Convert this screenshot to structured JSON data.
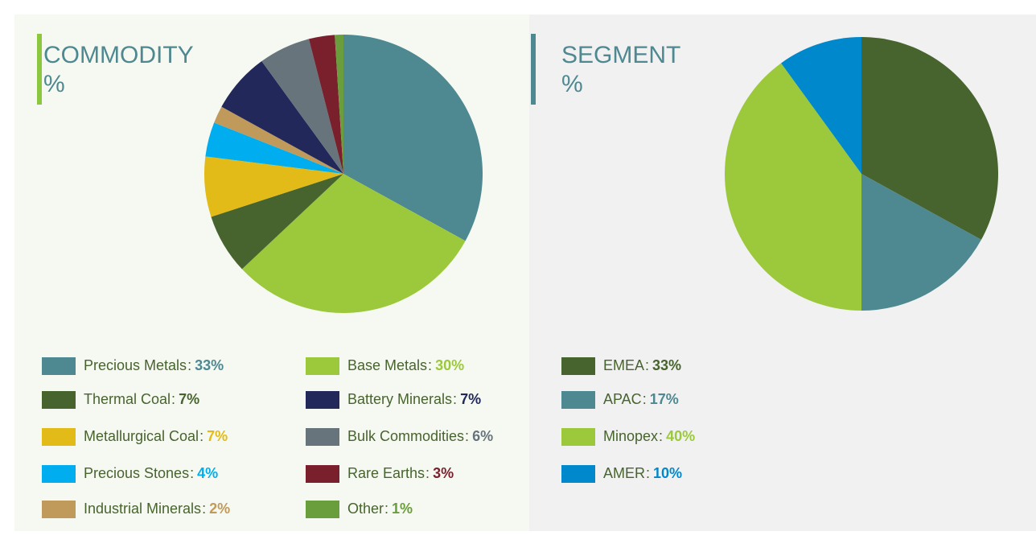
{
  "chart_data": [
    {
      "type": "pie",
      "title": "COMMODITY",
      "subtitle": "%",
      "separator": ":",
      "categories": [
        "Precious Metals",
        "Base Metals",
        "Thermal Coal",
        "Metallurgical Coal",
        "Precious Stones",
        "Industrial Minerals",
        "Battery Minerals",
        "Bulk Commodities",
        "Rare Earths",
        "Other"
      ],
      "values": [
        33,
        30,
        7,
        7,
        4,
        2,
        7,
        6,
        3,
        1
      ],
      "value_labels": [
        "33%",
        "30%",
        "7%",
        "7%",
        "4%",
        "2%",
        "7%",
        "6%",
        "3%",
        "1%"
      ],
      "colors": [
        "#4e8890",
        "#9bc93b",
        "#47632e",
        "#e2bb18",
        "#00aeef",
        "#c09a5b",
        "#22285a",
        "#67747b",
        "#7a1f2c",
        "#6a9e3c"
      ],
      "accent": "#8dc63f"
    },
    {
      "type": "pie",
      "title": "SEGMENT",
      "subtitle": "%",
      "separator": ":",
      "categories": [
        "EMEA",
        "APAC",
        "Minopex",
        "AMER"
      ],
      "values": [
        33,
        17,
        40,
        10
      ],
      "value_labels": [
        "33%",
        "17%",
        "40%",
        "10%"
      ],
      "colors": [
        "#47632e",
        "#4e8890",
        "#9bc93b",
        "#0088cc"
      ],
      "accent": "#4e8890"
    }
  ]
}
